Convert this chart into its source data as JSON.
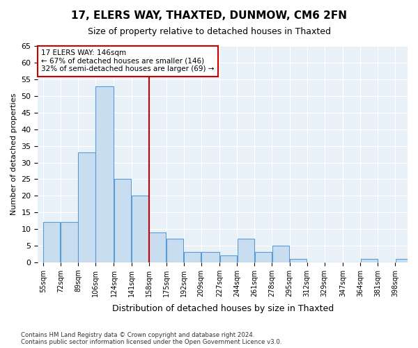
{
  "title1": "17, ELERS WAY, THAXTED, DUNMOW, CM6 2FN",
  "title2": "Size of property relative to detached houses in Thaxted",
  "xlabel": "Distribution of detached houses by size in Thaxted",
  "ylabel": "Number of detached properties",
  "bin_edges": [
    55,
    72,
    89,
    106,
    124,
    141,
    158,
    175,
    192,
    209,
    227,
    244,
    261,
    278,
    295,
    312,
    329,
    347,
    364,
    381,
    398,
    415
  ],
  "bin_labels": [
    "55sqm",
    "72sqm",
    "89sqm",
    "106sqm",
    "124sqm",
    "141sqm",
    "158sqm",
    "175sqm",
    "192sqm",
    "209sqm",
    "227sqm",
    "244sqm",
    "261sqm",
    "278sqm",
    "295sqm",
    "312sqm",
    "329sqm",
    "347sqm",
    "364sqm",
    "381sqm",
    "398sqm"
  ],
  "values": [
    12,
    12,
    33,
    53,
    25,
    20,
    9,
    7,
    3,
    3,
    2,
    7,
    3,
    5,
    1,
    0,
    0,
    0,
    1,
    0,
    1
  ],
  "bar_color": "#c8ddf0",
  "bar_edge_color": "#5b9bd5",
  "vline_x_index": 6,
  "vline_color": "#cc0000",
  "annotation_line1": "17 ELERS WAY: 146sqm",
  "annotation_line2": "← 67% of detached houses are smaller (146)",
  "annotation_line3": "32% of semi-detached houses are larger (69) →",
  "annotation_box_edge": "#cc0000",
  "ylim": [
    0,
    65
  ],
  "yticks": [
    0,
    5,
    10,
    15,
    20,
    25,
    30,
    35,
    40,
    45,
    50,
    55,
    60,
    65
  ],
  "background_color": "#e8f0f8",
  "footer1": "Contains HM Land Registry data © Crown copyright and database right 2024.",
  "footer2": "Contains public sector information licensed under the Open Government Licence v3.0."
}
